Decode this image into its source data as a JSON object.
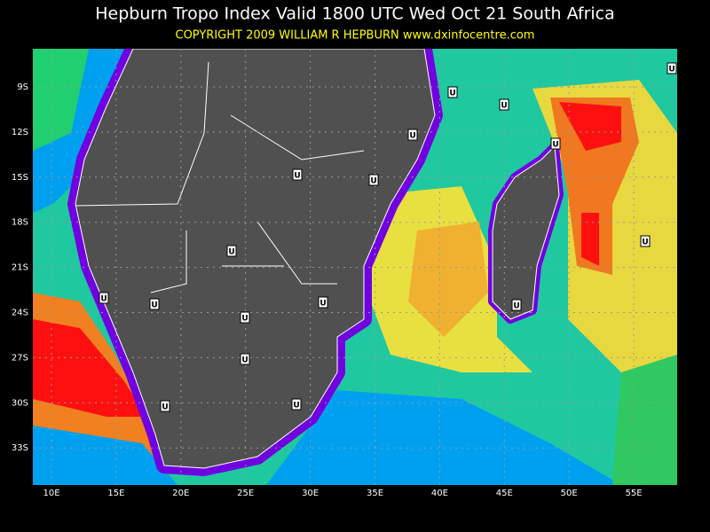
{
  "header": {
    "title": "Hepburn Tropo Index Valid 1800 UTC Wed Oct 21 South Africa",
    "copyright": "COPYRIGHT 2009   WILLIAM R HEPBURN   www.dxinfocentre.com"
  },
  "map": {
    "lat_labels": [
      "9S",
      "12S",
      "15S",
      "18S",
      "21S",
      "24S",
      "27S",
      "30S",
      "33S"
    ],
    "lon_labels": [
      "10E",
      "15E",
      "20E",
      "25E",
      "30E",
      "35E",
      "40E",
      "45E",
      "50E",
      "55E"
    ],
    "markers": [
      "U",
      "U",
      "U",
      "U",
      "U",
      "U",
      "U",
      "U",
      "U",
      "U",
      "U",
      "U",
      "U",
      "U",
      "U",
      "U",
      "U"
    ]
  }
}
